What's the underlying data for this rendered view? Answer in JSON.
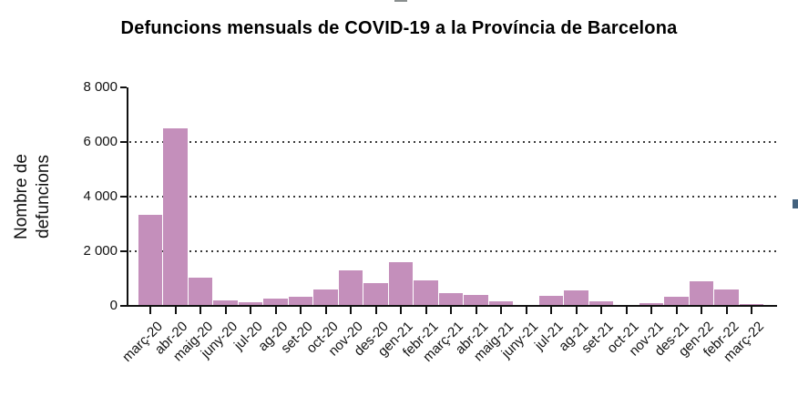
{
  "page": {
    "title": "Defuncions mensuals de COVID-19 a la Província de Barcelona"
  },
  "chart_data": {
    "type": "bar",
    "title": "Defuncions mensuals de COVID-19 a la Província de Barcelona",
    "ylabel": "Nombre de defuncions",
    "ylabel_lines": [
      "Nombre de",
      "defuncions"
    ],
    "xlabel": "",
    "categories": [
      "març-20",
      "abr-20",
      "maig-20",
      "juny-20",
      "jul-20",
      "ag-20",
      "set-20",
      "oct-20",
      "nov-20",
      "des-20",
      "gen-21",
      "febr-21",
      "març-21",
      "abr-21",
      "maig-21",
      "juny-21",
      "jul-21",
      "ag-21",
      "set-21",
      "oct-21",
      "nov-21",
      "des-21",
      "gen-22",
      "febr-22",
      "març-22"
    ],
    "values": [
      3350,
      6500,
      1050,
      200,
      150,
      270,
      330,
      600,
      1300,
      850,
      1600,
      920,
      460,
      400,
      170,
      40,
      370,
      560,
      170,
      20,
      100,
      340,
      890,
      600,
      60
    ],
    "ylim": [
      0,
      8000
    ],
    "ytick_step": 2000,
    "ytick_labels": [
      "0",
      "2 000",
      "4 000",
      "6 000",
      "8 000"
    ],
    "grid": "horizontal dotted at 2000, 4000, 6000",
    "legend": "none",
    "bar_color": "#c48fbb",
    "axis_color": "#111111"
  },
  "artifacts": {
    "top_dash_color": "#8a8f8f",
    "right_chip_color": "#44627e"
  }
}
